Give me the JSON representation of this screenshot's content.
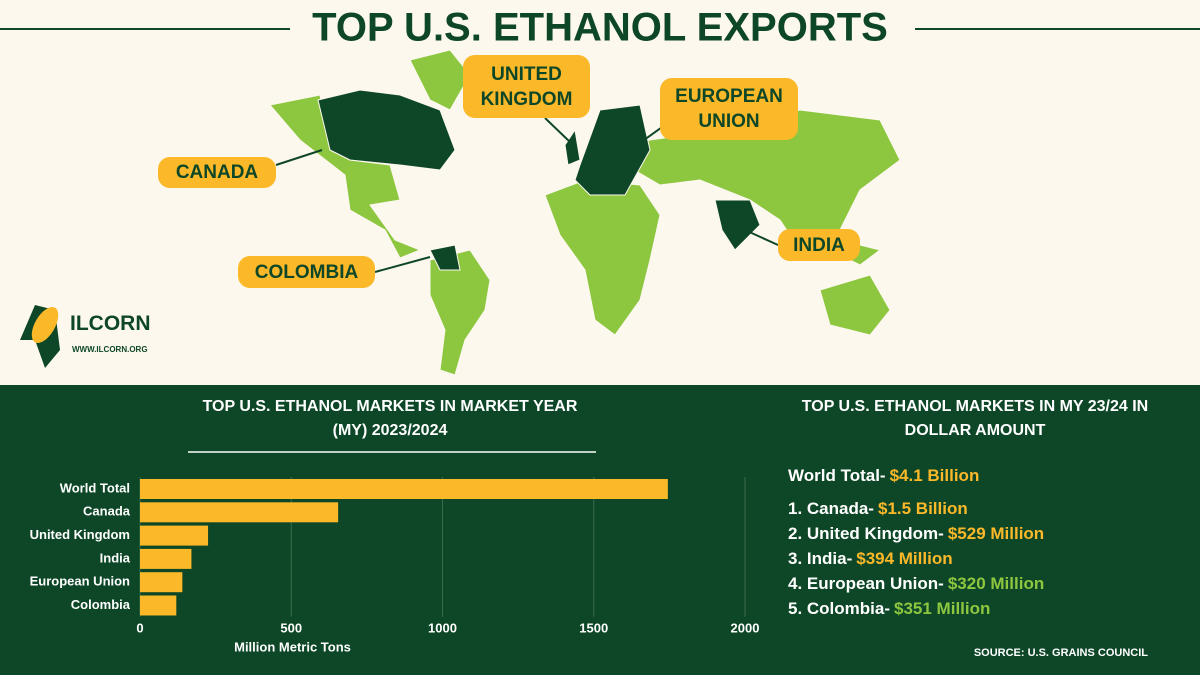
{
  "header": {
    "title": "TOP U.S. ETHANOL EXPORTS"
  },
  "map_labels": [
    "CANADA",
    "UNITED KINGDOM",
    "EUROPEAN UNION",
    "INDIA",
    "COLOMBIA"
  ],
  "logo": {
    "name": "ILCORN",
    "url": "WWW.ILCORN.ORG"
  },
  "chart_data": {
    "type": "bar",
    "orientation": "horizontal",
    "title": "TOP U.S. ETHANOL MARKETS IN MARKET YEAR (MY) 2023/2024",
    "categories": [
      "World Total",
      "Canada",
      "United Kingdom",
      "India",
      "European Union",
      "Colombia"
    ],
    "values": [
      1745,
      655,
      225,
      170,
      140,
      120
    ],
    "color": "#fbb829",
    "xlabel": "Million Metric Tons",
    "xlim": [
      0,
      2000
    ],
    "xticks": [
      0,
      500,
      1000,
      1500,
      2000
    ],
    "grid": true
  },
  "dollar_list": {
    "title": "TOP U.S. ETHANOL MARKETS IN MY 23/24 IN DOLLAR AMOUNT",
    "items": [
      {
        "label": "World Total-",
        "amount": "$4.1 Billion",
        "color": "#fbb829"
      },
      {
        "label": "1. Canada-",
        "amount": "$1.5 Billion",
        "color": "#fbb829"
      },
      {
        "label": "2. United Kingdom-",
        "amount": "$529 Million",
        "color": "#fbb829"
      },
      {
        "label": "3. India-",
        "amount": "$394 Million",
        "color": "#fbb829"
      },
      {
        "label": "4. European Union-",
        "amount": "$320 Million",
        "color": "#8dc63f"
      },
      {
        "label": "5. Colombia-",
        "amount": "$351 Million",
        "color": "#8dc63f"
      }
    ]
  },
  "source": "SOURCE: U.S. GRAINS COUNCIL"
}
